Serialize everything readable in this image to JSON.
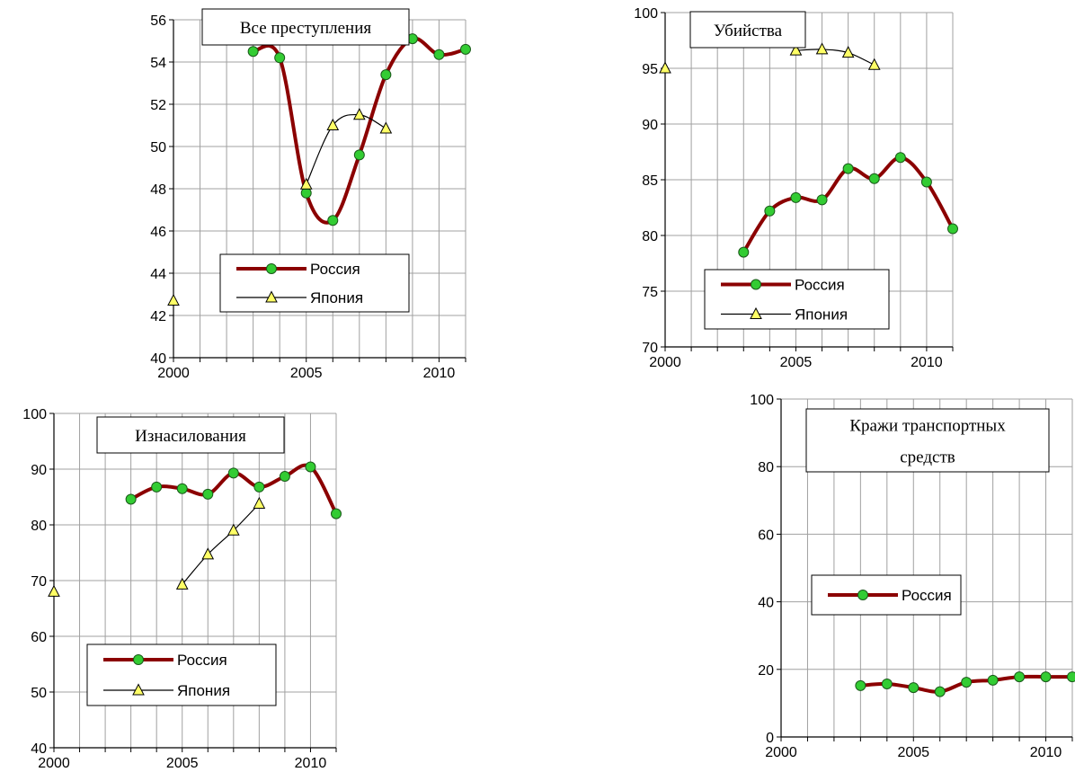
{
  "chart_data": [
    {
      "type": "line",
      "title": "Все преступления",
      "title_lines": [
        "Все преступления"
      ],
      "xlim": [
        2000,
        2011
      ],
      "ylim": [
        40,
        56
      ],
      "ystep": 2,
      "xticks": [
        2000,
        2005,
        2010
      ],
      "legend_placement": "bottom-center",
      "series": [
        {
          "name": "Россия",
          "color": "#8b0000",
          "marker": "circle",
          "marker_color": "#33cc33",
          "points": [
            [
              2003,
              54.5
            ],
            [
              2004,
              54.2
            ],
            [
              2005,
              47.8
            ],
            [
              2006,
              46.5
            ],
            [
              2007,
              49.6
            ],
            [
              2008,
              53.4
            ],
            [
              2009,
              55.1
            ],
            [
              2010,
              54.35
            ],
            [
              2011,
              54.6
            ]
          ]
        },
        {
          "name": "Япония",
          "color": "#000000",
          "marker": "triangle",
          "marker_color": "#ffff66",
          "points": [
            [
              2000,
              42.7
            ],
            [
              2005,
              48.2
            ],
            [
              2006,
              51.0
            ],
            [
              2007,
              51.5
            ],
            [
              2008,
              50.85
            ]
          ]
        }
      ]
    },
    {
      "type": "line",
      "title": "Убийства",
      "title_lines": [
        "Убийства"
      ],
      "xlim": [
        2000,
        2011
      ],
      "ylim": [
        70,
        100
      ],
      "ystep": 5,
      "xticks": [
        2000,
        2005,
        2010
      ],
      "legend_placement": "bottom-center",
      "series": [
        {
          "name": "Россия",
          "color": "#8b0000",
          "marker": "circle",
          "marker_color": "#33cc33",
          "points": [
            [
              2003,
              78.5
            ],
            [
              2004,
              82.2
            ],
            [
              2005,
              83.4
            ],
            [
              2006,
              83.2
            ],
            [
              2007,
              86.0
            ],
            [
              2008,
              85.1
            ],
            [
              2009,
              87.0
            ],
            [
              2010,
              84.8
            ],
            [
              2011,
              80.6
            ]
          ]
        },
        {
          "name": "Япония",
          "color": "#000000",
          "marker": "triangle",
          "marker_color": "#ffff66",
          "points": [
            [
              2000,
              95.0
            ],
            [
              2005,
              96.6
            ],
            [
              2006,
              96.7
            ],
            [
              2007,
              96.4
            ],
            [
              2008,
              95.3
            ]
          ]
        }
      ]
    },
    {
      "type": "line",
      "title": "Изнасилования",
      "title_lines": [
        "Изнасилования"
      ],
      "xlim": [
        2000,
        2011
      ],
      "ylim": [
        40,
        100
      ],
      "ystep": 10,
      "xticks": [
        2000,
        2005,
        2010
      ],
      "legend_placement": "bottom-center",
      "series": [
        {
          "name": "Россия",
          "color": "#8b0000",
          "marker": "circle",
          "marker_color": "#33cc33",
          "points": [
            [
              2003,
              84.6
            ],
            [
              2004,
              86.8
            ],
            [
              2005,
              86.5
            ],
            [
              2006,
              85.5
            ],
            [
              2007,
              89.3
            ],
            [
              2008,
              86.8
            ],
            [
              2009,
              88.7
            ],
            [
              2010,
              90.4
            ],
            [
              2011,
              82.0
            ]
          ]
        },
        {
          "name": "Япония",
          "color": "#000000",
          "marker": "triangle",
          "marker_color": "#ffff66",
          "points": [
            [
              2000,
              68.0
            ],
            [
              2005,
              69.3
            ],
            [
              2006,
              74.7
            ],
            [
              2007,
              79.0
            ],
            [
              2008,
              83.8
            ]
          ]
        }
      ]
    },
    {
      "type": "line",
      "title": "Кражи транспортных средств",
      "title_lines": [
        "Кражи транспортных",
        "средств"
      ],
      "xlim": [
        2000,
        2011
      ],
      "ylim": [
        0,
        100
      ],
      "ystep": 20,
      "xticks": [
        2000,
        2005,
        2010
      ],
      "legend_placement": "center-left",
      "series": [
        {
          "name": "Россия",
          "color": "#8b0000",
          "marker": "circle",
          "marker_color": "#33cc33",
          "points": [
            [
              2003,
              15.2
            ],
            [
              2004,
              15.7
            ],
            [
              2005,
              14.6
            ],
            [
              2006,
              13.4
            ],
            [
              2007,
              16.2
            ],
            [
              2008,
              16.8
            ],
            [
              2009,
              17.8
            ],
            [
              2010,
              17.8
            ],
            [
              2011,
              17.8
            ]
          ]
        }
      ]
    }
  ]
}
